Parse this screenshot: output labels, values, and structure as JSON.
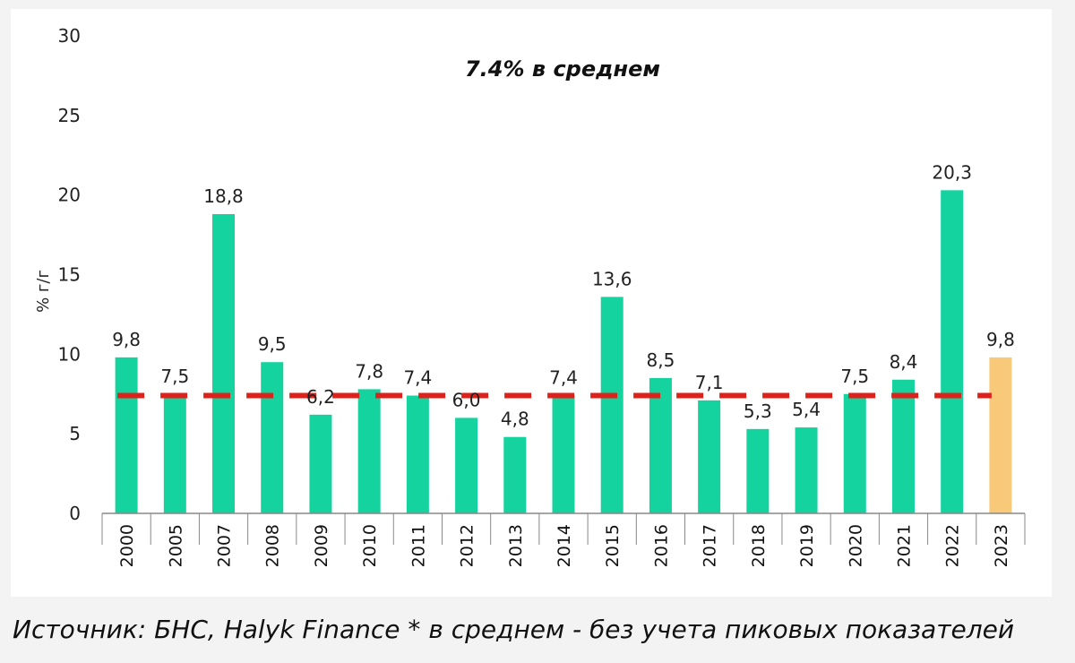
{
  "chart_data": {
    "type": "bar",
    "title": "7.4% в среднем",
    "ylabel": "% г/г",
    "xlabel": "",
    "ylim": [
      0,
      30
    ],
    "yticks": [
      0,
      5,
      10,
      15,
      20,
      25,
      30
    ],
    "categories": [
      "2000",
      "2005",
      "2007",
      "2008",
      "2009",
      "2010",
      "2011",
      "2012",
      "2013",
      "2014",
      "2015",
      "2016",
      "2017",
      "2018",
      "2019",
      "2020",
      "2021",
      "2022",
      "2023"
    ],
    "values": [
      9.8,
      7.5,
      18.8,
      9.5,
      6.2,
      7.8,
      7.4,
      6.0,
      4.8,
      7.4,
      13.6,
      8.5,
      7.1,
      5.3,
      5.4,
      7.5,
      8.4,
      20.3,
      9.8
    ],
    "value_labels": [
      "9,8",
      "7,5",
      "18,8",
      "9,5",
      "6,2",
      "7,8",
      "7,4",
      "6,0",
      "4,8",
      "7,4",
      "13,6",
      "8,5",
      "7,1",
      "5,3",
      "5,4",
      "7,5",
      "8,4",
      "20,3",
      "9,8"
    ],
    "average_line": {
      "value": 7.4,
      "style": "dashed",
      "color": "#e0201a"
    },
    "colors": {
      "bar": "#14d39e",
      "highlight": "#f9c97a",
      "axis": "#888888"
    },
    "highlight_categories": [
      "2023"
    ],
    "grid": false,
    "legend": "none"
  },
  "footer": {
    "source": "Источник: БНС, Halyk Finance * в среднем - без учета пиковых показателей"
  }
}
